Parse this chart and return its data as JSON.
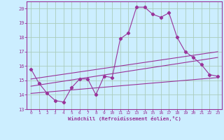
{
  "xlabel": "Windchill (Refroidissement éolien,°C)",
  "background_color": "#cceeff",
  "grid_color": "#aaccbb",
  "line_color": "#993399",
  "spine_color": "#993399",
  "xlim": [
    -0.5,
    23.5
  ],
  "ylim": [
    13,
    20.5
  ],
  "yticks": [
    13,
    14,
    15,
    16,
    17,
    18,
    19,
    20
  ],
  "xticks": [
    0,
    1,
    2,
    3,
    4,
    5,
    6,
    7,
    8,
    9,
    10,
    11,
    12,
    13,
    14,
    15,
    16,
    17,
    18,
    19,
    20,
    21,
    22,
    23
  ],
  "curve1_x": [
    0,
    1,
    2,
    3,
    4,
    5,
    6,
    7,
    8,
    9,
    10,
    11,
    12,
    13,
    14,
    15,
    16,
    17,
    18,
    19,
    20,
    21,
    22,
    23
  ],
  "curve1_y": [
    15.8,
    14.8,
    14.1,
    13.6,
    13.5,
    14.5,
    15.1,
    15.1,
    14.0,
    15.3,
    15.2,
    17.9,
    18.3,
    20.1,
    20.1,
    19.6,
    19.4,
    19.7,
    18.0,
    17.0,
    16.6,
    16.1,
    15.4,
    15.3
  ],
  "line1_x": [
    0,
    23
  ],
  "line1_y": [
    15.1,
    17.0
  ],
  "line2_x": [
    0,
    23
  ],
  "line2_y": [
    14.6,
    16.6
  ],
  "line3_x": [
    0,
    23
  ],
  "line3_y": [
    14.1,
    15.2
  ]
}
